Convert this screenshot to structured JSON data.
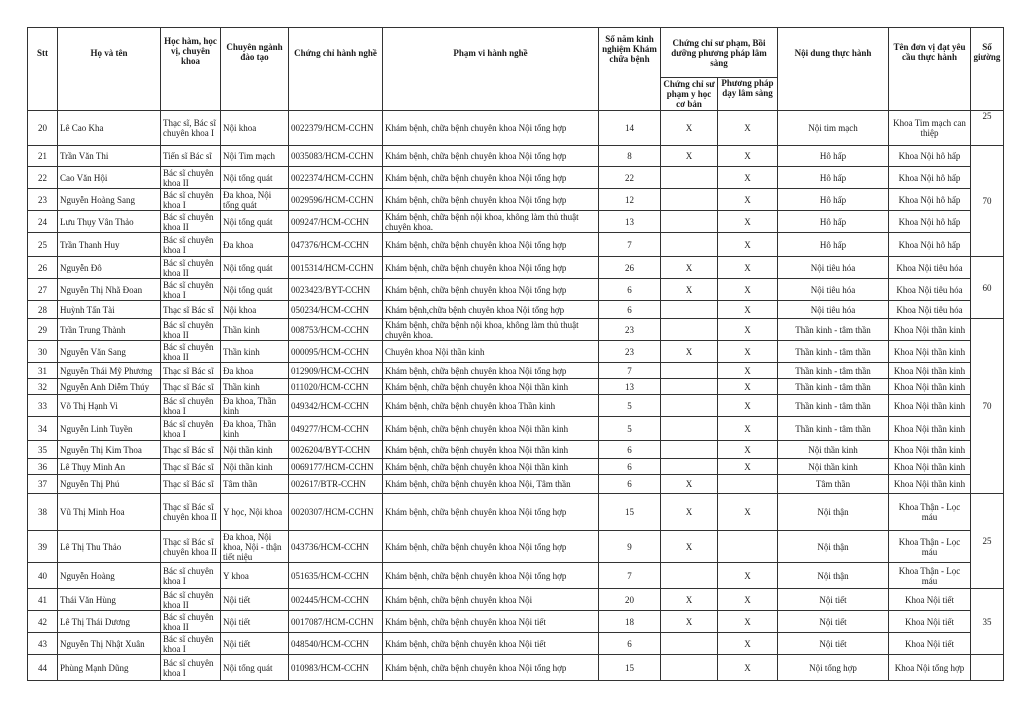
{
  "headers": {
    "stt": "Stt",
    "name": "Họ và tên",
    "degree": "Học hàm, học vị, chuyên khoa",
    "major": "Chuyên ngành đào tạo",
    "license": "Chứng chỉ hành nghề",
    "scope": "Phạm vi hành nghề",
    "years": "Số năm kinh nghiệm Khám chữa bệnh",
    "cert_group": "Chứng chỉ sư phạm, Bồi dưỡng phương pháp lâm sàng",
    "cert_basic": "Chứng chỉ sư phạm y học cơ bản",
    "cert_clinical": "Phương pháp dạy lâm sàng",
    "practice": "Nội dung thực hành",
    "unit": "Tên đơn vị đạt yêu cầu thực hành",
    "beds": "Số giường"
  },
  "rows": [
    {
      "stt": "20",
      "name": "Lê Cao Kha",
      "degree": "Thạc sĩ, Bác sĩ chuyên khoa I",
      "major": "Nội khoa",
      "license": "0022379/HCM-CCHN",
      "scope": "Khám bệnh, chữa bệnh chuyên khoa Nội tổng hợp",
      "years": "14",
      "cert_basic": "X",
      "cert_clinical": "X",
      "practice": "Nội tim mạch",
      "unit": "Khoa Tim mạch can thiệp"
    },
    {
      "stt": "21",
      "name": "Trần Văn Thi",
      "degree": "Tiến sĩ Bác sĩ",
      "major": "Nội Tim mạch",
      "license": "0035083/HCM-CCHN",
      "scope": "Khám bệnh, chữa bệnh chuyên khoa Nội tổng hợp",
      "years": "8",
      "cert_basic": "X",
      "cert_clinical": "X",
      "practice": "Hô hấp",
      "unit": "Khoa Nội hô hấp"
    },
    {
      "stt": "22",
      "name": "Cao Văn Hội",
      "degree": "Bác sĩ chuyên khoa II",
      "major": "Nội tổng quát",
      "license": "0022374/HCM-CCHN",
      "scope": "Khám bệnh, chữa bệnh chuyên khoa Nội tổng hợp",
      "years": "22",
      "cert_basic": "",
      "cert_clinical": "X",
      "practice": "Hô hấp",
      "unit": "Khoa Nội hô hấp"
    },
    {
      "stt": "23",
      "name": "Nguyễn Hoàng Sang",
      "degree": "Bác sĩ chuyên khoa I",
      "major": "Đa khoa, Nội tổng quát",
      "license": "0029596/HCM-CCHN",
      "scope": "Khám bệnh, chữa bệnh chuyên khoa Nội tổng hợp",
      "years": "12",
      "cert_basic": "",
      "cert_clinical": "X",
      "practice": "Hô hấp",
      "unit": "Khoa Nội hô hấp"
    },
    {
      "stt": "24",
      "name": "Lưu Thụy Vân Thảo",
      "degree": "Bác sĩ chuyên khoa II",
      "major": "Nội tổng quát",
      "license": "009247/HCM-CCHN",
      "scope": "Khám bệnh, chữa bệnh nội khoa, không làm thủ thuật chuyên khoa.",
      "years": "13",
      "cert_basic": "",
      "cert_clinical": "X",
      "practice": "Hô hấp",
      "unit": "Khoa Nội hô hấp"
    },
    {
      "stt": "25",
      "name": "Trần Thanh Huy",
      "degree": "Bác sĩ chuyên khoa I",
      "major": "Đa khoa",
      "license": "047376/HCM-CCHN",
      "scope": "Khám bệnh, chữa bệnh chuyên khoa Nội tổng hợp",
      "years": "7",
      "cert_basic": "",
      "cert_clinical": "X",
      "practice": "Hô hấp",
      "unit": "Khoa Nội hô hấp"
    },
    {
      "stt": "26",
      "name": "Nguyễn Đô",
      "degree": "Bác sĩ chuyên khoa II",
      "major": "Nội tổng quát",
      "license": "0015314/HCM-CCHN",
      "scope": "Khám bệnh, chữa bệnh chuyên khoa Nội tổng hợp",
      "years": "26",
      "cert_basic": "X",
      "cert_clinical": "X",
      "practice": "Nội tiêu hóa",
      "unit": "Khoa Nội tiêu hóa"
    },
    {
      "stt": "27",
      "name": "Nguyễn Thị Nhã Đoan",
      "degree": "Bác sĩ chuyên khoa I",
      "major": "Nội tổng quát",
      "license": "0023423/BYT-CCHN",
      "scope": "Khám bệnh, chữa bệnh chuyên khoa Nội tổng hợp",
      "years": "6",
      "cert_basic": "X",
      "cert_clinical": "X",
      "practice": "Nội tiêu hóa",
      "unit": "Khoa Nội tiêu hóa"
    },
    {
      "stt": "28",
      "name": "Huỳnh Tấn Tài",
      "degree": "Thạc sĩ Bác sĩ",
      "major": "Nội khoa",
      "license": "050234/HCM-CCHN",
      "scope": "Khám bệnh,chữa bệnh chuyên khoa Nội tổng hợp",
      "years": "6",
      "cert_basic": "",
      "cert_clinical": "X",
      "practice": "Nội tiêu hóa",
      "unit": "Khoa Nội tiêu hóa"
    },
    {
      "stt": "29",
      "name": "Trần Trung Thành",
      "degree": "Bác sĩ chuyên khoa II",
      "major": "Thần kinh",
      "license": "008753/HCM-CCHN",
      "scope": "Khám bệnh, chữa bệnh nội khoa, không làm thủ thuật chuyên khoa.",
      "years": "23",
      "cert_basic": "",
      "cert_clinical": "X",
      "practice": "Thần kinh - tâm thần",
      "unit": "Khoa Nội thần kinh"
    },
    {
      "stt": "30",
      "name": "Nguyễn Văn Sang",
      "degree": "Bác sĩ chuyên khoa II",
      "major": "Thần kinh",
      "license": "000095/HCM-CCHN",
      "scope": "Chuyên khoa Nội thần kinh",
      "years": "23",
      "cert_basic": "X",
      "cert_clinical": "X",
      "practice": "Thần kinh - tâm thần",
      "unit": "Khoa Nội thần kinh"
    },
    {
      "stt": "31",
      "name": "Nguyễn Thái Mỹ Phương",
      "degree": "Thạc sĩ Bác sĩ",
      "major": "Đa khoa",
      "license": "012909/HCM-CCHN",
      "scope": "Khám bệnh, chữa bệnh chuyên khoa Nội tổng hợp",
      "years": "7",
      "cert_basic": "",
      "cert_clinical": "X",
      "practice": "Thần kinh - tâm thần",
      "unit": "Khoa Nội thần kinh"
    },
    {
      "stt": "32",
      "name": "Nguyễn Anh Diễm Thúy",
      "degree": "Thạc sĩ Bác sĩ",
      "major": "Thần kinh",
      "license": "011020/HCM-CCHN",
      "scope": "Khám bệnh, chữa bệnh chuyên khoa Nội thần kinh",
      "years": "13",
      "cert_basic": "",
      "cert_clinical": "X",
      "practice": "Thần kinh - tâm thần",
      "unit": "Khoa Nội thần kinh"
    },
    {
      "stt": "33",
      "name": "Võ Thị Hạnh Vi",
      "degree": "Bác sĩ chuyên khoa I",
      "major": "Đa khoa, Thần kinh",
      "license": "049342/HCM-CCHN",
      "scope": "Khám bệnh, chữa bệnh chuyên khoa Thần kinh",
      "years": "5",
      "cert_basic": "",
      "cert_clinical": "X",
      "practice": "Thần kinh - tâm thần",
      "unit": "Khoa Nội thần kinh"
    },
    {
      "stt": "34",
      "name": "Nguyễn Linh Tuyền",
      "degree": "Bác sĩ chuyên khoa I",
      "major": "Đa khoa, Thần kinh",
      "license": "049277/HCM-CCHN",
      "scope": "Khám bệnh, chữa bệnh chuyên khoa Nội thần kinh",
      "years": "5",
      "cert_basic": "",
      "cert_clinical": "X",
      "practice": "Thần kinh - tâm thần",
      "unit": "Khoa Nội thần kinh"
    },
    {
      "stt": "35",
      "name": "Nguyễn Thị Kim Thoa",
      "degree": "Thạc sĩ Bác sĩ",
      "major": "Nội thần kinh",
      "license": "0026204/BYT-CCHN",
      "scope": "Khám bệnh, chữa bệnh chuyên khoa Nội thần kinh",
      "years": "6",
      "cert_basic": "",
      "cert_clinical": "X",
      "practice": "Nội thần kinh",
      "unit": "Khoa Nội thần kinh"
    },
    {
      "stt": "36",
      "name": "Lê Thụy Minh An",
      "degree": "Thạc sĩ Bác sĩ",
      "major": "Nội thần kinh",
      "license": "0069177/HCM-CCHN",
      "scope": "Khám bệnh, chữa bệnh chuyên khoa Nội thần kinh",
      "years": "6",
      "cert_basic": "",
      "cert_clinical": "X",
      "practice": "Nội thần kinh",
      "unit": "Khoa Nội thần kinh"
    },
    {
      "stt": "37",
      "name": "Nguyễn Thị Phú",
      "degree": "Thạc sĩ Bác sĩ",
      "major": "Tâm thần",
      "license": "002617/BTR-CCHN",
      "scope": "Khám bệnh, chữa bệnh chuyên khoa Nội, Tâm thần",
      "years": "6",
      "cert_basic": "X",
      "cert_clinical": "",
      "practice": "Tâm thần",
      "unit": "Khoa Nội thần kinh"
    },
    {
      "stt": "38",
      "name": "Vũ Thị Minh Hoa",
      "degree": "Thạc sĩ Bác sĩ chuyên khoa II",
      "major": "Y học, Nội khoa",
      "license": "0020307/HCM-CCHN",
      "scope": "Khám bệnh, chữa bệnh chuyên khoa Nội tổng hợp",
      "years": "15",
      "cert_basic": "X",
      "cert_clinical": "X",
      "practice": "Nội thận",
      "unit": "Khoa Thận - Lọc máu"
    },
    {
      "stt": "39",
      "name": "Lê Thị Thu Thảo",
      "degree": "Thạc sĩ Bác sĩ chuyên khoa II",
      "major": "Đa khoa, Nội khoa, Nội - thận tiết niệu",
      "license": "043736/HCM-CCHN",
      "scope": "Khám bệnh, chữa bệnh chuyên khoa Nội tổng hợp",
      "years": "9",
      "cert_basic": "X",
      "cert_clinical": "",
      "practice": "Nội thận",
      "unit": "Khoa Thận - Lọc máu"
    },
    {
      "stt": "40",
      "name": "Nguyễn Hoàng",
      "degree": "Bác sĩ chuyên khoa I",
      "major": "Y khoa",
      "license": "051635/HCM-CCHN",
      "scope": "Khám bệnh, chữa bệnh chuyên khoa Nội tổng hợp",
      "years": "7",
      "cert_basic": "",
      "cert_clinical": "X",
      "practice": "Nội thận",
      "unit": "Khoa Thận - Lọc máu"
    },
    {
      "stt": "41",
      "name": "Thái Văn Hùng",
      "degree": "Bác sĩ chuyên khoa II",
      "major": "Nội tiết",
      "license": "002445/HCM-CCHN",
      "scope": "Khám bệnh, chữa bệnh chuyên khoa Nội",
      "years": "20",
      "cert_basic": "X",
      "cert_clinical": "X",
      "practice": "Nội tiết",
      "unit": "Khoa Nội tiết"
    },
    {
      "stt": "42",
      "name": "Lê Thị Thái Dương",
      "degree": "Bác sĩ chuyên khoa II",
      "major": "Nội tiết",
      "license": "0017087/HCM-CCHN",
      "scope": "Khám bệnh, chữa bệnh chuyên khoa Nội tiết",
      "years": "18",
      "cert_basic": "X",
      "cert_clinical": "X",
      "practice": "Nội tiết",
      "unit": "Khoa Nội tiết"
    },
    {
      "stt": "43",
      "name": "Nguyễn Thị Nhật Xuân",
      "degree": "Bác sĩ chuyên khoa I",
      "major": "Nội tiết",
      "license": "048540/HCM-CCHN",
      "scope": "Khám bệnh, chữa bệnh chuyên khoa Nội tiết",
      "years": "6",
      "cert_basic": "",
      "cert_clinical": "X",
      "practice": "Nội tiết",
      "unit": "Khoa Nội tiết"
    },
    {
      "stt": "44",
      "name": "Phùng Mạnh Dũng",
      "degree": "Bác sĩ chuyên khoa I",
      "major": "Nội tổng quát",
      "license": "010983/HCM-CCHN",
      "scope": "Khám bệnh, chữa bệnh chuyên khoa Nội tổng hợp",
      "years": "15",
      "cert_basic": "",
      "cert_clinical": "X",
      "practice": "Nội tổng hợp",
      "unit": "Khoa Nội tổng hợp"
    }
  ],
  "bed_groups": [
    {
      "beds": "25",
      "row_count": 1
    },
    {
      "beds": "70",
      "row_count": 5
    },
    {
      "beds": "60",
      "row_count": 3
    },
    {
      "beds": "70",
      "row_count": 9
    },
    {
      "beds": "25",
      "row_count": 3
    },
    {
      "beds": "35",
      "row_count": 3
    },
    {
      "beds": "",
      "row_count": 1
    }
  ]
}
